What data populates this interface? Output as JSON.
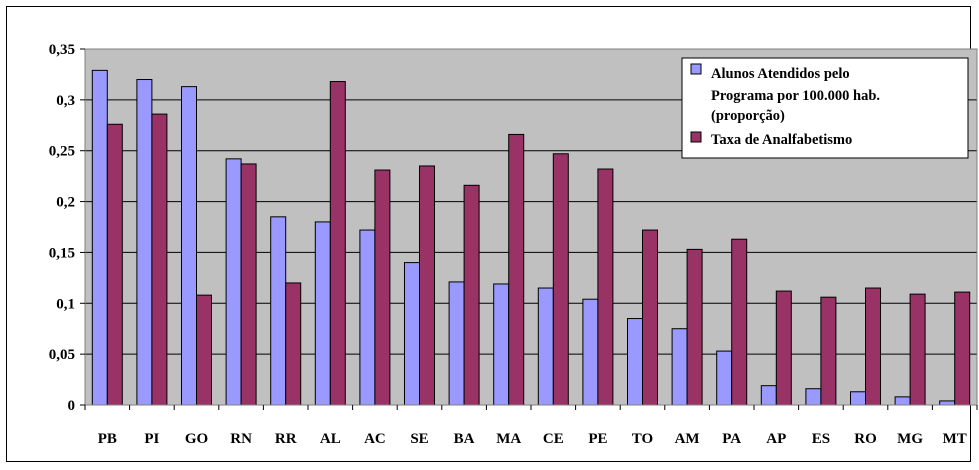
{
  "chart_data": {
    "type": "bar",
    "title": "",
    "xlabel": "",
    "ylabel": "",
    "ylim": [
      0,
      0.35
    ],
    "ytick_step": 0.05,
    "ytick_labels": [
      "0",
      "0,05",
      "0,1",
      "0,15",
      "0,2",
      "0,25",
      "0,3",
      "0,35"
    ],
    "grid": true,
    "legend_position": "top-right",
    "categories": [
      "PB",
      "PI",
      "GO",
      "RN",
      "RR",
      "AL",
      "AC",
      "SE",
      "BA",
      "MA",
      "CE",
      "PE",
      "TO",
      "AM",
      "PA",
      "AP",
      "ES",
      "RO",
      "MG",
      "MT"
    ],
    "series": [
      {
        "name": "Alunos Atendidos pelo Programa por  100.000 hab. (proporção)",
        "legend_lines": [
          "Alunos Atendidos pelo",
          "Programa por  100.000 hab.",
          "(proporção)"
        ],
        "color": "#9999FF",
        "values": [
          0.329,
          0.32,
          0.313,
          0.242,
          0.185,
          0.18,
          0.172,
          0.14,
          0.121,
          0.119,
          0.115,
          0.104,
          0.085,
          0.075,
          0.053,
          0.019,
          0.016,
          0.013,
          0.008,
          0.004
        ]
      },
      {
        "name": "Taxa de Analfabetismo",
        "legend_lines": [
          "Taxa de Analfabetismo"
        ],
        "color": "#993366",
        "values": [
          0.276,
          0.286,
          0.108,
          0.237,
          0.12,
          0.318,
          0.231,
          0.235,
          0.216,
          0.266,
          0.247,
          0.232,
          0.172,
          0.153,
          0.163,
          0.112,
          0.106,
          0.115,
          0.109,
          0.111
        ]
      }
    ],
    "plot_background": "#C0C0C0"
  }
}
